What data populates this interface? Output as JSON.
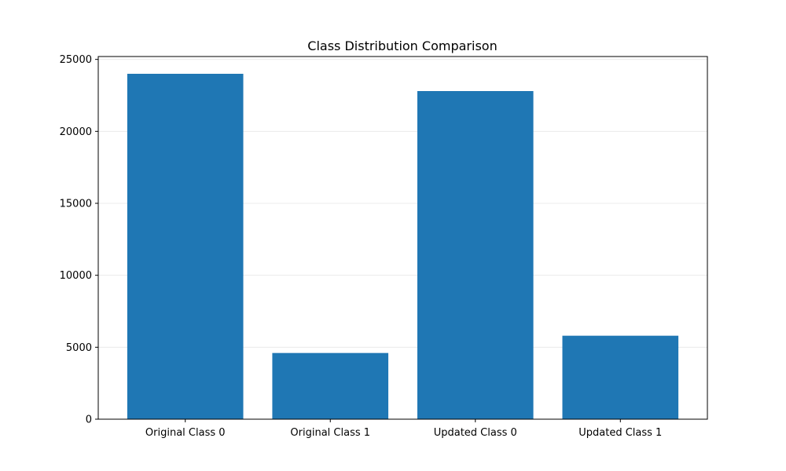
{
  "chart_data": {
    "type": "bar",
    "title": "Class Distribution Comparison",
    "xlabel": "",
    "ylabel": "",
    "categories": [
      "Original Class 0",
      "Original Class 1",
      "Updated Class 0",
      "Updated Class 1"
    ],
    "values": [
      24000,
      4600,
      22800,
      5800
    ],
    "ylim": [
      0,
      25200
    ],
    "yticks": [
      0,
      5000,
      10000,
      15000,
      20000,
      25000
    ],
    "grid": "y-axis only",
    "legend": "none",
    "bar_color": "#1f77b4"
  }
}
